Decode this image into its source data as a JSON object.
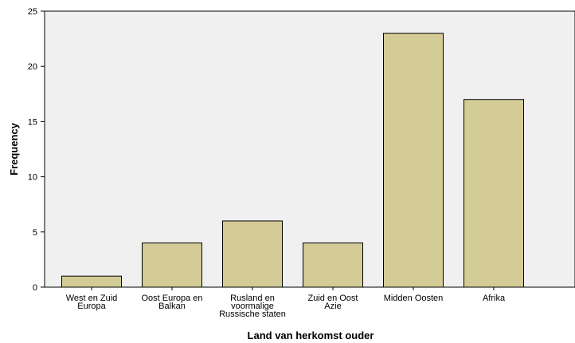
{
  "chart_data": {
    "type": "bar",
    "categories": [
      [
        "West en Zuid",
        "Europa"
      ],
      [
        "Oost Europa en",
        "Balkan"
      ],
      [
        "Rusland en",
        "voormalige",
        "Russische staten"
      ],
      [
        "Zuid en Oost",
        "Azie"
      ],
      [
        "Midden Oosten"
      ],
      [
        "Afrika"
      ]
    ],
    "values": [
      1,
      4,
      6,
      4,
      23,
      17
    ],
    "xlabel": "Land van herkomst ouder",
    "ylabel": "Frequency",
    "ylim": [
      0,
      25
    ],
    "yticks": [
      0,
      5,
      10,
      15,
      20,
      25
    ],
    "grid": false,
    "colors": {
      "plot_background": "#f0f0f0",
      "bar_fill": "#d4cc96",
      "bar_stroke": "#000000"
    }
  }
}
